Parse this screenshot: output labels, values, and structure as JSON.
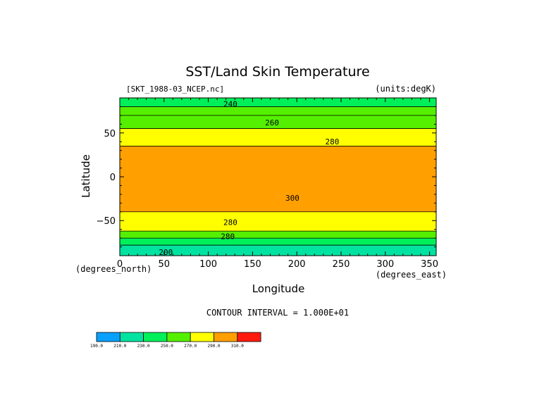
{
  "chart_data": {
    "type": "heatmap",
    "title": "SST/Land Skin Temperature",
    "source_label": "[SKT_1988-03_NCEP.nc]",
    "units_label": "(units:degK)",
    "xlabel": "Longitude",
    "ylabel": "Latitude",
    "x_unit_label": "(degrees_east)",
    "y_unit_label": "(degrees_north)",
    "xlim": [
      0,
      357.5
    ],
    "ylim": [
      -90,
      90
    ],
    "x_ticks": [
      0,
      50,
      100,
      150,
      200,
      250,
      300,
      350
    ],
    "y_ticks": [
      -50,
      0,
      50
    ],
    "y_tick_labels": [
      "−50",
      "0",
      "50"
    ],
    "contour_interval_text": "CONTOUR INTERVAL = 1.000E+01",
    "contour_labels": [
      {
        "text": "240",
        "lon": 125,
        "lat": 83
      },
      {
        "text": "260",
        "lon": 172,
        "lat": 62
      },
      {
        "text": "280",
        "lon": 240,
        "lat": 40
      },
      {
        "text": "300",
        "lon": 195,
        "lat": -24
      },
      {
        "text": "280",
        "lon": 125,
        "lat": -52
      },
      {
        "text": "280",
        "lon": 122,
        "lat": -68
      },
      {
        "text": "200",
        "lon": 52,
        "lat": -86
      }
    ],
    "latitude_bands": [
      {
        "lat_from": 90,
        "lat_to": 80,
        "value": 240
      },
      {
        "lat_from": 80,
        "lat_to": 70,
        "value": 250
      },
      {
        "lat_from": 70,
        "lat_to": 55,
        "value": 265
      },
      {
        "lat_from": 55,
        "lat_to": 35,
        "value": 285
      },
      {
        "lat_from": 35,
        "lat_to": -40,
        "value": 300
      },
      {
        "lat_from": -40,
        "lat_to": -62,
        "value": 285
      },
      {
        "lat_from": -62,
        "lat_to": -70,
        "value": 265
      },
      {
        "lat_from": -70,
        "lat_to": -78,
        "value": 245
      },
      {
        "lat_from": -78,
        "lat_to": -90,
        "value": 225
      }
    ],
    "colorbar": {
      "levels": [
        "190.0",
        "210.0",
        "230.0",
        "250.0",
        "270.0",
        "290.0",
        "310.0"
      ],
      "colors": [
        "#0aa0ff",
        "#00e3a0",
        "#00f05a",
        "#55f000",
        "#ffff00",
        "#ffa000",
        "#ff1a10"
      ]
    }
  }
}
